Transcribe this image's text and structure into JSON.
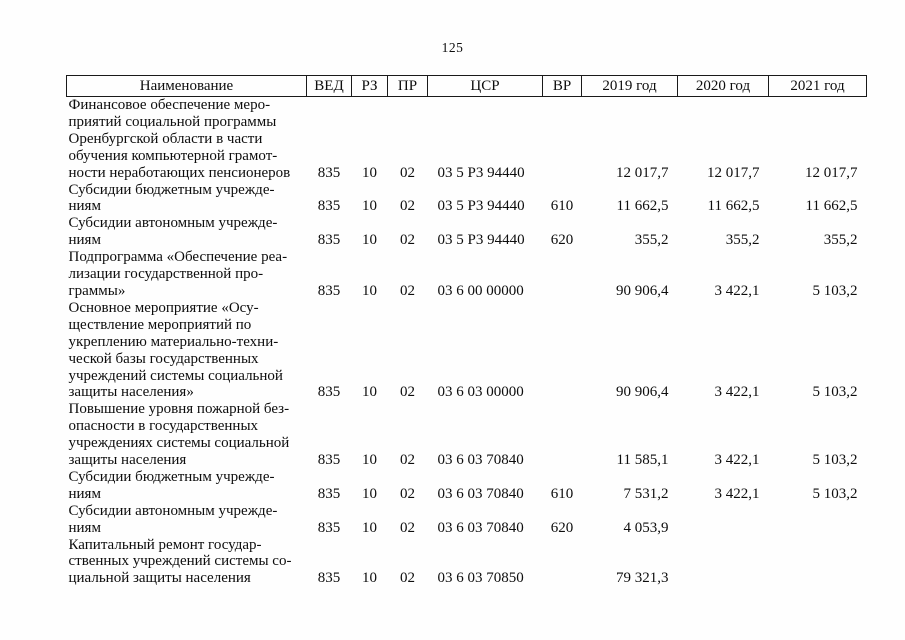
{
  "page": {
    "number": "125"
  },
  "table": {
    "headers": [
      "Наименование",
      "ВЕД",
      "РЗ",
      "ПР",
      "ЦСР",
      "ВР",
      "2019 год",
      "2020 год",
      "2021 год"
    ],
    "rows": [
      {
        "name": "Финансовое обеспечение меро-\nприятий социальной программы\nОренбургской области в части\nобучения компьютерной грамот-\nности неработающих пенсионеров",
        "ved": "835",
        "rz": "10",
        "pr": "02",
        "csr": "03 5 Р3 94440",
        "vr": "",
        "y2019": "12 017,7",
        "y2020": "12 017,7",
        "y2021": "12 017,7"
      },
      {
        "name": "Субсидии бюджетным учрежде-\nниям",
        "ved": "835",
        "rz": "10",
        "pr": "02",
        "csr": "03 5 Р3 94440",
        "vr": "610",
        "y2019": "11 662,5",
        "y2020": "11 662,5",
        "y2021": "11 662,5"
      },
      {
        "name": "Субсидии автономным учрежде-\nниям",
        "ved": "835",
        "rz": "10",
        "pr": "02",
        "csr": "03 5 Р3 94440",
        "vr": "620",
        "y2019": "355,2",
        "y2020": "355,2",
        "y2021": "355,2"
      },
      {
        "name": "Подпрограмма «Обеспечение реа-\nлизации государственной про-\nграммы»",
        "ved": "835",
        "rz": "10",
        "pr": "02",
        "csr": "03 6 00 00000",
        "vr": "",
        "y2019": "90 906,4",
        "y2020": "3 422,1",
        "y2021": "5 103,2"
      },
      {
        "name": "Основное мероприятие «Осу-\nществление мероприятий по\nукреплению материально-техни-\nческой базы государственных\nучреждений системы социальной\nзащиты населения»",
        "ved": "835",
        "rz": "10",
        "pr": "02",
        "csr": "03 6 03 00000",
        "vr": "",
        "y2019": "90 906,4",
        "y2020": "3 422,1",
        "y2021": "5 103,2"
      },
      {
        "name": "Повышение уровня пожарной без-\nопасности в государственных\nучреждениях системы социальной\nзащиты населения",
        "ved": "835",
        "rz": "10",
        "pr": "02",
        "csr": "03 6 03 70840",
        "vr": "",
        "y2019": "11 585,1",
        "y2020": "3 422,1",
        "y2021": "5 103,2"
      },
      {
        "name": "Субсидии бюджетным учрежде-\nниям",
        "ved": "835",
        "rz": "10",
        "pr": "02",
        "csr": "03 6 03 70840",
        "vr": "610",
        "y2019": "7 531,2",
        "y2020": "3 422,1",
        "y2021": "5 103,2"
      },
      {
        "name": "Субсидии автономным учрежде-\nниям",
        "ved": "835",
        "rz": "10",
        "pr": "02",
        "csr": "03 6 03 70840",
        "vr": "620",
        "y2019": "4 053,9",
        "y2020": "",
        "y2021": ""
      },
      {
        "name": "Капитальный ремонт государ-\nственных учреждений системы со-\nциальной защиты населения",
        "ved": "835",
        "rz": "10",
        "pr": "02",
        "csr": "03 6 03 70850",
        "vr": "",
        "y2019": "79 321,3",
        "y2020": "",
        "y2021": ""
      }
    ]
  }
}
